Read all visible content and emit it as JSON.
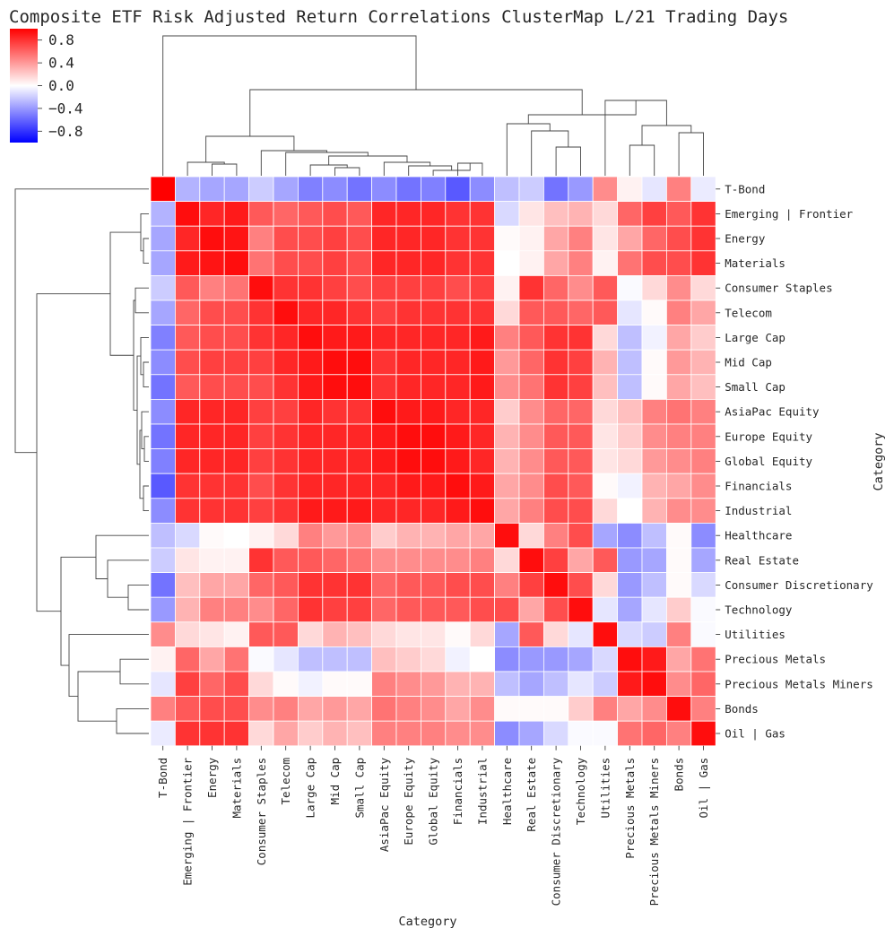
{
  "chart_data": {
    "type": "heatmap",
    "title": "Composite ETF Risk Adjusted Return Correlations ClusterMap L/21 Trading Days",
    "xlabel": "Category",
    "ylabel": "Category",
    "colormap": "bwr",
    "vmin": -1,
    "vmax": 1,
    "colorbar_ticks": [
      0.8,
      0.4,
      0.0,
      -0.4,
      -0.8
    ],
    "colorbar_labels": [
      "0.8",
      "0.4",
      "0.0",
      "−0.4",
      "−0.8"
    ],
    "categories": [
      "T-Bond",
      "Emerging | Frontier",
      "Energy",
      "Materials",
      "Consumer Staples",
      "Telecom",
      "Large Cap",
      "Mid Cap",
      "Small Cap",
      "AsiaPac Equity",
      "Europe Equity",
      "Global Equity",
      "Financials",
      "Industrial",
      "Healthcare",
      "Real Estate",
      "Consumer Discretionary",
      "Technology",
      "Utilities",
      "Precious Metals",
      "Precious Metals Miners",
      "Bonds",
      "Oil | Gas"
    ],
    "matrix": [
      [
        1.0,
        -0.3,
        -0.35,
        -0.35,
        -0.2,
        -0.35,
        -0.5,
        -0.45,
        -0.55,
        -0.45,
        -0.55,
        -0.5,
        -0.65,
        -0.45,
        -0.25,
        -0.2,
        -0.55,
        -0.4,
        0.45,
        0.05,
        -0.1,
        0.5,
        -0.08
      ],
      [
        -0.3,
        0.95,
        0.85,
        0.9,
        0.65,
        0.6,
        0.65,
        0.7,
        0.65,
        0.85,
        0.85,
        0.85,
        0.8,
        0.8,
        -0.15,
        0.1,
        0.25,
        0.3,
        0.15,
        0.6,
        0.75,
        0.65,
        0.8
      ],
      [
        -0.35,
        0.85,
        0.95,
        0.92,
        0.5,
        0.7,
        0.7,
        0.75,
        0.7,
        0.85,
        0.85,
        0.85,
        0.8,
        0.8,
        0.02,
        0.05,
        0.35,
        0.5,
        0.1,
        0.35,
        0.6,
        0.7,
        0.8
      ],
      [
        -0.35,
        0.9,
        0.92,
        0.95,
        0.55,
        0.7,
        0.7,
        0.75,
        0.7,
        0.85,
        0.85,
        0.85,
        0.8,
        0.8,
        0.0,
        0.05,
        0.35,
        0.5,
        0.05,
        0.55,
        0.7,
        0.7,
        0.8
      ],
      [
        -0.2,
        0.65,
        0.5,
        0.55,
        0.95,
        0.8,
        0.8,
        0.75,
        0.7,
        0.75,
        0.75,
        0.75,
        0.7,
        0.75,
        0.05,
        0.8,
        0.6,
        0.45,
        0.65,
        -0.02,
        0.15,
        0.45,
        0.15
      ],
      [
        -0.35,
        0.6,
        0.7,
        0.7,
        0.8,
        0.95,
        0.85,
        0.85,
        0.8,
        0.75,
        0.8,
        0.8,
        0.8,
        0.8,
        0.15,
        0.65,
        0.65,
        0.6,
        0.65,
        -0.1,
        0.02,
        0.5,
        0.35
      ],
      [
        -0.5,
        0.65,
        0.7,
        0.7,
        0.8,
        0.85,
        0.95,
        0.9,
        0.9,
        0.85,
        0.85,
        0.85,
        0.85,
        0.9,
        0.5,
        0.65,
        0.8,
        0.8,
        0.15,
        -0.25,
        -0.05,
        0.35,
        0.2
      ],
      [
        -0.45,
        0.7,
        0.75,
        0.75,
        0.75,
        0.85,
        0.9,
        0.95,
        0.95,
        0.8,
        0.85,
        0.85,
        0.85,
        0.9,
        0.4,
        0.6,
        0.8,
        0.75,
        0.3,
        -0.25,
        0.02,
        0.4,
        0.3
      ],
      [
        -0.55,
        0.65,
        0.7,
        0.7,
        0.7,
        0.8,
        0.9,
        0.95,
        0.95,
        0.8,
        0.85,
        0.85,
        0.85,
        0.9,
        0.45,
        0.55,
        0.8,
        0.75,
        0.25,
        -0.25,
        0.02,
        0.35,
        0.25
      ],
      [
        -0.45,
        0.85,
        0.85,
        0.85,
        0.75,
        0.75,
        0.85,
        0.8,
        0.8,
        0.95,
        0.9,
        0.9,
        0.85,
        0.85,
        0.2,
        0.45,
        0.6,
        0.6,
        0.15,
        0.25,
        0.5,
        0.55,
        0.5
      ],
      [
        -0.55,
        0.85,
        0.85,
        0.85,
        0.75,
        0.8,
        0.85,
        0.85,
        0.85,
        0.9,
        0.95,
        0.95,
        0.9,
        0.85,
        0.3,
        0.45,
        0.65,
        0.65,
        0.1,
        0.2,
        0.45,
        0.5,
        0.5
      ],
      [
        -0.5,
        0.85,
        0.85,
        0.85,
        0.75,
        0.8,
        0.85,
        0.85,
        0.85,
        0.9,
        0.95,
        0.95,
        0.9,
        0.85,
        0.3,
        0.45,
        0.65,
        0.65,
        0.1,
        0.15,
        0.4,
        0.45,
        0.5
      ],
      [
        -0.65,
        0.8,
        0.8,
        0.8,
        0.7,
        0.8,
        0.85,
        0.85,
        0.85,
        0.85,
        0.9,
        0.9,
        0.95,
        0.9,
        0.35,
        0.45,
        0.7,
        0.65,
        0.02,
        -0.05,
        0.3,
        0.35,
        0.45
      ],
      [
        -0.45,
        0.8,
        0.8,
        0.8,
        0.75,
        0.8,
        0.9,
        0.9,
        0.9,
        0.85,
        0.85,
        0.85,
        0.9,
        0.95,
        0.35,
        0.5,
        0.7,
        0.7,
        0.15,
        0.0,
        0.3,
        0.45,
        0.45
      ],
      [
        -0.25,
        -0.15,
        0.02,
        0.0,
        0.05,
        0.15,
        0.5,
        0.4,
        0.45,
        0.2,
        0.3,
        0.3,
        0.35,
        0.35,
        0.95,
        0.15,
        0.5,
        0.7,
        -0.35,
        -0.45,
        -0.25,
        0.02,
        -0.45
      ],
      [
        -0.2,
        0.1,
        0.05,
        0.05,
        0.8,
        0.65,
        0.65,
        0.6,
        0.55,
        0.45,
        0.45,
        0.45,
        0.45,
        0.5,
        0.15,
        0.95,
        0.75,
        0.35,
        0.65,
        -0.4,
        -0.35,
        0.02,
        -0.35
      ],
      [
        -0.55,
        0.25,
        0.35,
        0.35,
        0.6,
        0.65,
        0.8,
        0.8,
        0.8,
        0.6,
        0.65,
        0.65,
        0.7,
        0.7,
        0.5,
        0.75,
        0.95,
        0.7,
        0.15,
        -0.4,
        -0.25,
        0.02,
        -0.15
      ],
      [
        -0.4,
        0.3,
        0.5,
        0.5,
        0.45,
        0.6,
        0.8,
        0.75,
        0.75,
        0.6,
        0.65,
        0.65,
        0.65,
        0.7,
        0.7,
        0.35,
        0.7,
        0.95,
        -0.1,
        -0.35,
        -0.1,
        0.2,
        -0.02
      ],
      [
        0.45,
        0.15,
        0.1,
        0.05,
        0.65,
        0.65,
        0.15,
        0.3,
        0.25,
        0.15,
        0.1,
        0.1,
        0.02,
        0.15,
        -0.35,
        0.65,
        0.15,
        -0.1,
        0.95,
        -0.15,
        -0.2,
        0.5,
        -0.02
      ],
      [
        0.05,
        0.6,
        0.35,
        0.55,
        -0.02,
        -0.1,
        -0.25,
        -0.25,
        -0.25,
        0.25,
        0.2,
        0.15,
        -0.05,
        0.0,
        -0.45,
        -0.4,
        -0.4,
        -0.35,
        -0.15,
        0.95,
        0.9,
        0.35,
        0.55
      ],
      [
        -0.1,
        0.75,
        0.6,
        0.7,
        0.15,
        0.02,
        -0.05,
        0.02,
        0.02,
        0.5,
        0.45,
        0.4,
        0.3,
        0.3,
        -0.25,
        -0.35,
        -0.25,
        -0.1,
        -0.2,
        0.9,
        0.95,
        0.45,
        0.6
      ],
      [
        0.5,
        0.65,
        0.7,
        0.7,
        0.45,
        0.5,
        0.35,
        0.4,
        0.35,
        0.55,
        0.5,
        0.45,
        0.35,
        0.45,
        0.02,
        0.02,
        0.02,
        0.2,
        0.5,
        0.35,
        0.45,
        0.95,
        0.5
      ],
      [
        -0.08,
        0.8,
        0.8,
        0.8,
        0.15,
        0.35,
        0.2,
        0.3,
        0.25,
        0.5,
        0.5,
        0.5,
        0.45,
        0.45,
        -0.45,
        -0.35,
        -0.15,
        -0.02,
        -0.02,
        0.55,
        0.6,
        0.5,
        0.95
      ]
    ]
  }
}
